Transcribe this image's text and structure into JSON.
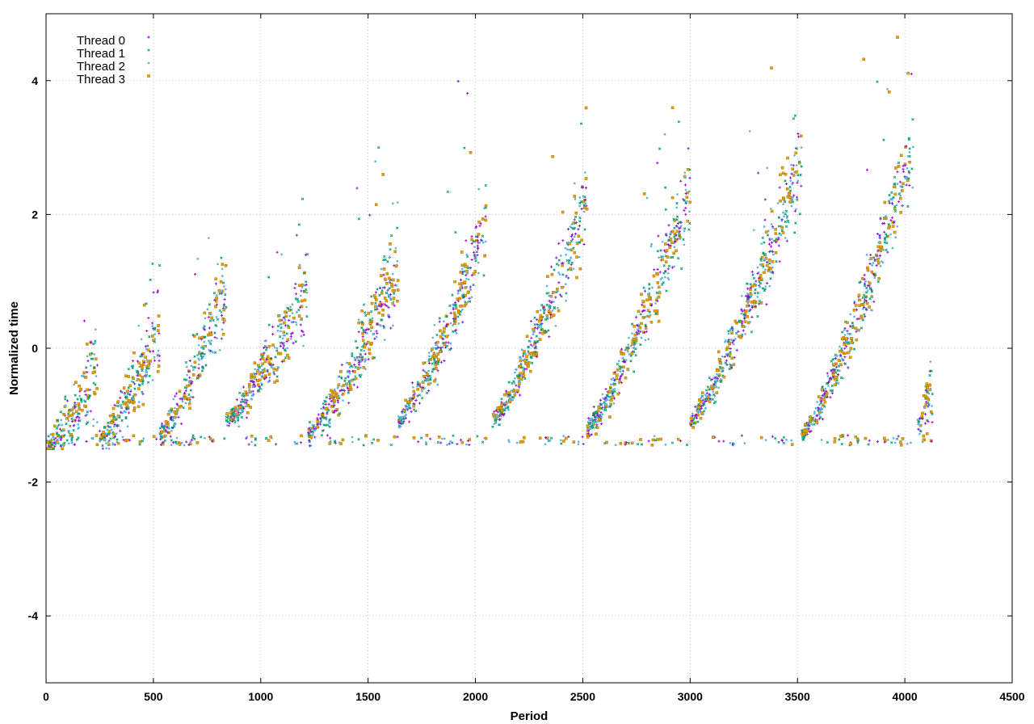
{
  "chart_data": {
    "type": "scatter",
    "title": "",
    "xlabel": "Period",
    "ylabel": "Normalized time",
    "xlim": [
      0,
      4500
    ],
    "ylim": [
      -5,
      5
    ],
    "x_ticks": [
      0,
      500,
      1000,
      1500,
      2000,
      2500,
      3000,
      3500,
      4000,
      4500
    ],
    "y_ticks": [
      -4,
      -2,
      0,
      2,
      4
    ],
    "grid": true,
    "legend_position": "top-left",
    "series": [
      {
        "name": "Thread 0",
        "color": "#9400d3",
        "marker": "plus"
      },
      {
        "name": "Thread 1",
        "color": "#009e73",
        "marker": "cross"
      },
      {
        "name": "Thread 2",
        "color": "#56b4e9",
        "marker": "dot"
      },
      {
        "name": "Thread 3",
        "color": "#e69f00",
        "marker": "square"
      }
    ],
    "cycles": [
      {
        "x_start": 0,
        "x_end": 240,
        "y_start": -1.5,
        "y_end": -0.3,
        "y_max": 0.8
      },
      {
        "x_start": 250,
        "x_end": 530,
        "y_start": -1.4,
        "y_end": 0.3,
        "y_max": 1.3
      },
      {
        "x_start": 530,
        "x_end": 840,
        "y_start": -1.3,
        "y_end": 0.9,
        "y_max": 2.0
      },
      {
        "x_start": 840,
        "x_end": 1220,
        "y_start": -1.1,
        "y_end": 1.0,
        "y_max": 2.4
      },
      {
        "x_start": 1220,
        "x_end": 1640,
        "y_start": -1.3,
        "y_end": 1.2,
        "y_max": 3.0
      },
      {
        "x_start": 1640,
        "x_end": 2050,
        "y_start": -1.1,
        "y_end": 1.8,
        "y_max": 4.0
      },
      {
        "x_start": 2080,
        "x_end": 2520,
        "y_start": -1.1,
        "y_end": 2.2,
        "y_max": 3.8
      },
      {
        "x_start": 2520,
        "x_end": 3000,
        "y_start": -1.2,
        "y_end": 2.3,
        "y_max": 4.0
      },
      {
        "x_start": 3000,
        "x_end": 3520,
        "y_start": -1.1,
        "y_end": 2.8,
        "y_max": 4.4
      },
      {
        "x_start": 3520,
        "x_end": 4040,
        "y_start": -1.3,
        "y_end": 3.0,
        "y_max": 4.7
      },
      {
        "x_start": 4060,
        "x_end": 4130,
        "y_start": -1.2,
        "y_end": -0.6,
        "y_max": -0.2
      }
    ],
    "y_floor": -1.45
  }
}
